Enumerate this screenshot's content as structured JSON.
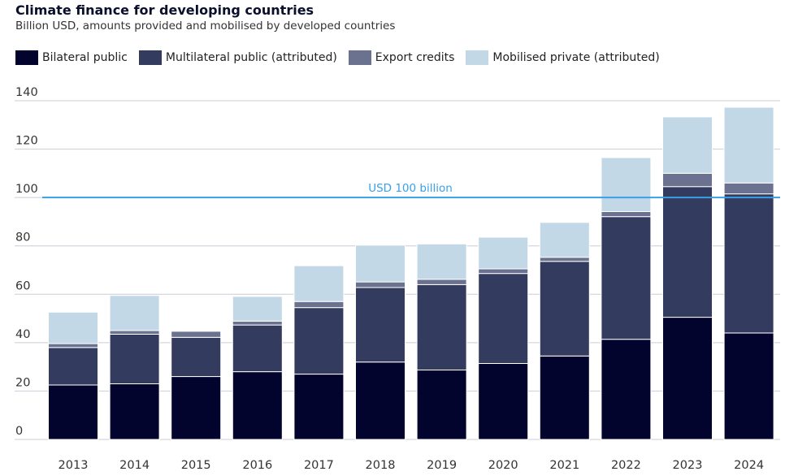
{
  "title": "Climate finance for developing countries",
  "subtitle": "Billion USD, amounts provided and mobilised by developed countries",
  "chart_data": {
    "type": "bar",
    "stacked": true,
    "categories": [
      "2013",
      "2014",
      "2015",
      "2016",
      "2017",
      "2018",
      "2019",
      "2020",
      "2021",
      "2022",
      "2023",
      "2024"
    ],
    "series": [
      {
        "name": "Bilateral public",
        "color": "#02042e",
        "values": [
          22.5,
          23,
          26,
          28,
          27,
          32,
          28.7,
          31.4,
          34.5,
          41.4,
          50.5,
          44
        ]
      },
      {
        "name": "Multilateral public (attributed)",
        "color": "#333b5e",
        "values": [
          15.5,
          20.5,
          16.2,
          19.3,
          27.5,
          30.8,
          35.3,
          37.2,
          39.1,
          50.7,
          54,
          57.5
        ]
      },
      {
        "name": "Export credits",
        "color": "#6b7290",
        "values": [
          1.6,
          1.5,
          2.5,
          1.6,
          2.5,
          2.3,
          2.2,
          1.9,
          1.7,
          2.1,
          5.5,
          4.5
        ]
      },
      {
        "name": "Mobilised private (attributed)",
        "color": "#c2d8e6",
        "values": [
          13,
          14.5,
          0,
          10.2,
          14.8,
          15.2,
          14.6,
          13.1,
          14.4,
          22.3,
          23.3,
          31.3
        ]
      }
    ],
    "ylim": [
      0,
      140
    ],
    "yticks": [
      0,
      20,
      40,
      60,
      80,
      100,
      120,
      140
    ],
    "grid": true,
    "legend_position": "top-left",
    "reference_line": {
      "value": 100,
      "label": "USD 100 billion",
      "color": "#3a9fe6"
    }
  }
}
